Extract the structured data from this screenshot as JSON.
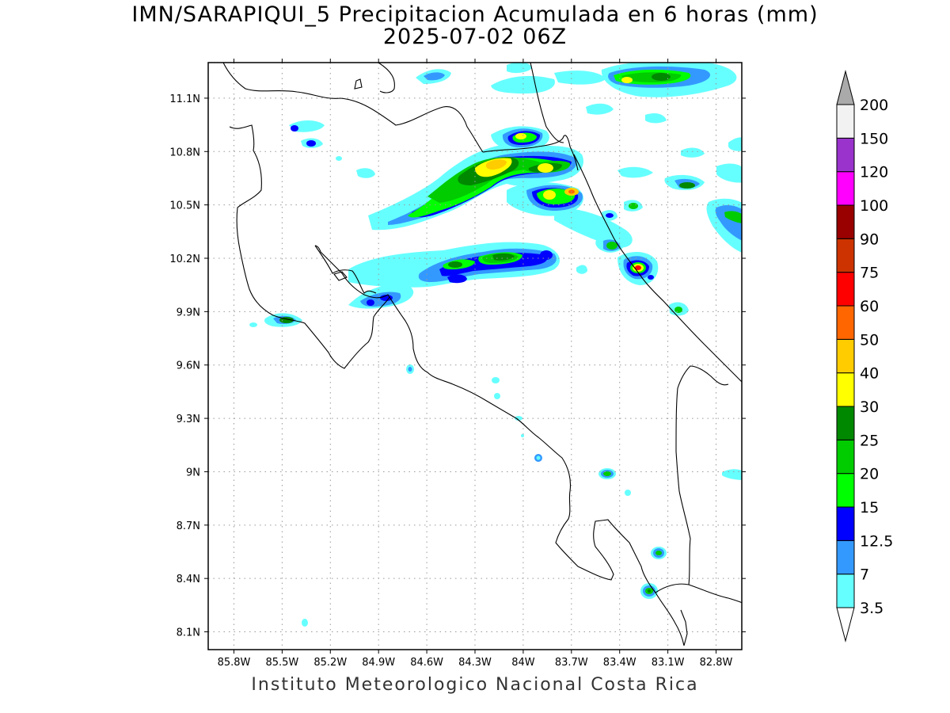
{
  "title_line1": "IMN/SARAPIQUI_5 Precipitacion Acumulada en 6 horas (mm)",
  "title_line2": "2025-07-02 06Z",
  "footer": "Instituto Meteorologico Nacional Costa Rica",
  "map": {
    "lon_range": [
      -85.96,
      -82.64
    ],
    "lat_range": [
      8.0,
      11.3
    ],
    "lon_ticks": [
      "85.8W",
      "85.5W",
      "85.2W",
      "84.9W",
      "84.6W",
      "84.3W",
      "84W",
      "83.7W",
      "83.4W",
      "83.1W",
      "82.8W"
    ],
    "lat_ticks": [
      "11.1N",
      "10.8N",
      "10.5N",
      "10.2N",
      "9.9N",
      "9.6N",
      "9.3N",
      "9N",
      "8.7N",
      "8.4N",
      "8.1N"
    ],
    "gridlines": true
  },
  "colorbar": {
    "labels": [
      "3.5",
      "7",
      "12.5",
      "15",
      "20",
      "25",
      "30",
      "40",
      "50",
      "60",
      "75",
      "90",
      "100",
      "120",
      "150",
      "200"
    ],
    "colors": [
      "#66ffff",
      "#3399ff",
      "#0000ff",
      "#00ff00",
      "#00cc00",
      "#008800",
      "#ffff00",
      "#ffcc00",
      "#ff6600",
      "#ff0000",
      "#cc3300",
      "#990000",
      "#ff00ff",
      "#9933cc",
      "#f2f2f2",
      "#aaaaaa"
    ]
  }
}
